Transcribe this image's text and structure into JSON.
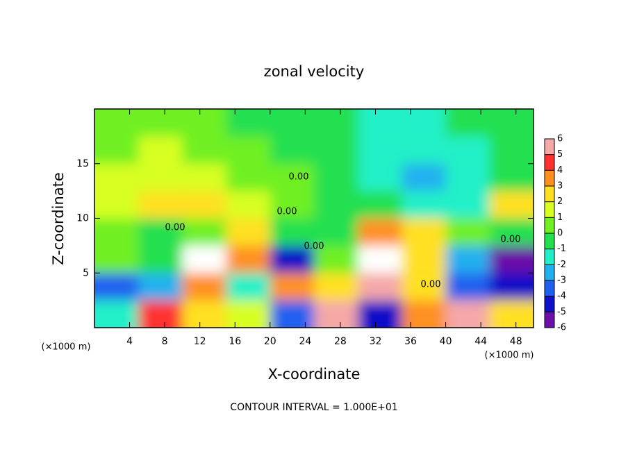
{
  "chart_data": {
    "type": "heatmap",
    "title": "zonal velocity",
    "xlabel": "X-coordinate",
    "ylabel": "Z-coordinate",
    "x_unit": "(×1000 m)",
    "footer": "CONTOUR INTERVAL = 1.000E+01",
    "annotations": [
      "0.00",
      "0.00",
      "0.00",
      "0.00",
      "0.00",
      "0.00"
    ],
    "x": [
      2.5,
      7.5,
      12.5,
      17.5,
      22.5,
      27.5,
      32.5,
      37.5,
      42.5,
      47.5
    ],
    "y": [
      1.25,
      3.75,
      6.25,
      8.75,
      11.25,
      13.75,
      16.25,
      18.75
    ],
    "z": [
      [
        -1,
        5,
        3,
        2,
        -3,
        6,
        -4,
        4,
        6,
        3
      ],
      [
        -3,
        -2,
        4,
        -1,
        4,
        3,
        6,
        3,
        -3,
        -4
      ],
      [
        1,
        0,
        7,
        4,
        -4,
        1,
        7,
        3,
        -2,
        -5
      ],
      [
        1,
        0,
        1,
        3,
        0,
        0,
        4,
        3,
        1,
        0
      ],
      [
        2,
        3,
        3,
        2,
        1,
        0,
        0,
        -1,
        -1,
        3
      ],
      [
        2,
        2,
        2,
        1,
        1,
        0,
        -1,
        -2,
        -1,
        0
      ],
      [
        1,
        2,
        1,
        1,
        0,
        0,
        -1,
        -1,
        -1,
        0
      ],
      [
        1,
        1,
        1,
        0,
        0,
        0,
        -1,
        -1,
        0,
        0
      ]
    ],
    "xlim": [
      0,
      50
    ],
    "ylim": [
      0,
      20
    ],
    "xticks": [
      4,
      8,
      12,
      16,
      20,
      24,
      28,
      32,
      36,
      40,
      44,
      48
    ],
    "yticks": [
      5,
      10,
      15
    ],
    "colorbar": {
      "levels": [
        -6,
        -5,
        -4,
        -3,
        -2,
        -1,
        0,
        1,
        2,
        3,
        4,
        5,
        6
      ],
      "colors": [
        "#6a10a8",
        "#1010c8",
        "#2060f0",
        "#20b0f0",
        "#20f0c8",
        "#20e050",
        "#70f020",
        "#d8ff20",
        "#ffe020",
        "#ff9020",
        "#ff3030",
        "#f5a8a8"
      ]
    }
  }
}
